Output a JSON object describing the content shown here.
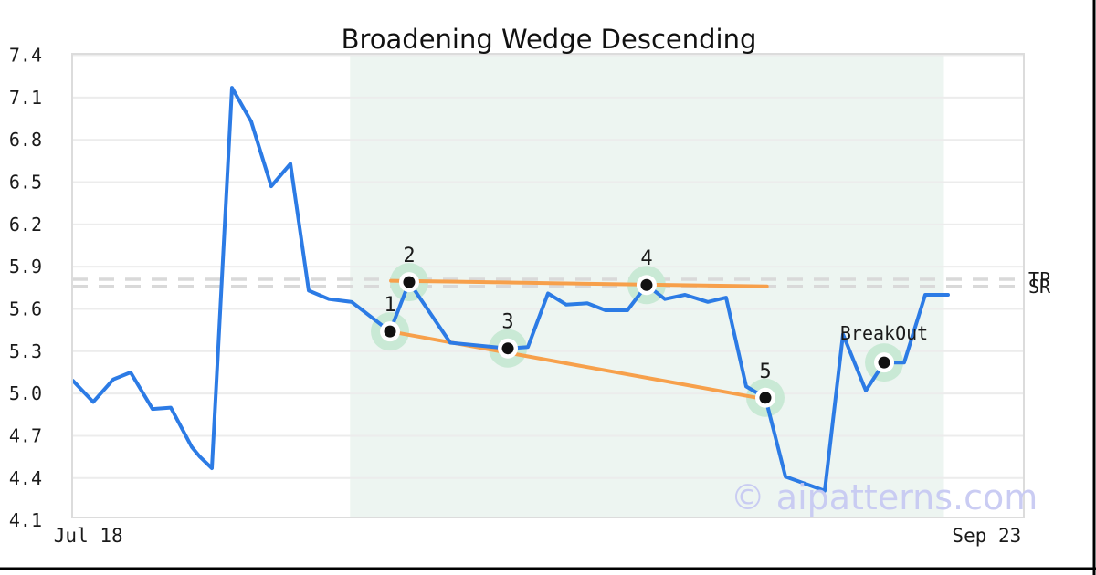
{
  "watermark": "© aipatterns.com",
  "colors": {
    "price_line": "#2c7be5",
    "trendline": "#f7a04b",
    "marker_halo": "#c9e9d5",
    "marker_ring": "#ffffff",
    "marker_dot": "#111111",
    "pattern_region": "#edf5f1",
    "gridline": "#ececec",
    "plot_border": "#dcdcdc",
    "dashed_level": "#d9d9d9",
    "watermark_color": "#c8caf3",
    "label_color": "#1a1a1a",
    "frame_border": "#000000"
  },
  "chart_data": {
    "type": "line",
    "title": "Broadening Wedge Descending",
    "grid": true,
    "legend_position": "none",
    "axis": {
      "y_min": 4.12,
      "y_max": 7.41
    },
    "y_ticks": [
      7.4,
      7.1,
      6.8,
      6.5,
      6.2,
      5.9,
      5.6,
      5.3,
      5.0,
      4.7,
      4.4,
      4.1
    ],
    "x_ticks": [
      {
        "label": "Jul 18",
        "x_pct": 1.7
      },
      {
        "label": "Sep 23",
        "x_pct": 96.1
      }
    ],
    "series": [
      {
        "name": "price",
        "x_pct": [
          0.1,
          2.21,
          4.32,
          6.14,
          8.45,
          10.36,
          12.57,
          13.44,
          14.68,
          16.79,
          18.81,
          20.92,
          22.94,
          24.86,
          26.97,
          29.37,
          33.4,
          35.41,
          39.73,
          45.78,
          47.89,
          50.0,
          51.92,
          54.13,
          56.05,
          58.35,
          60.36,
          62.28,
          64.4,
          66.79,
          68.71,
          70.83,
          72.84,
          74.95,
          76.2,
          79.08,
          81.0,
          83.4,
          85.32,
          87.43,
          89.64,
          92.03
        ],
        "values": [
          5.09,
          4.94,
          5.1,
          5.15,
          4.89,
          4.9,
          4.62,
          4.55,
          4.47,
          7.17,
          6.93,
          6.47,
          6.63,
          5.73,
          5.67,
          5.65,
          5.44,
          5.79,
          5.36,
          5.32,
          5.33,
          5.71,
          5.63,
          5.64,
          5.59,
          5.59,
          5.77,
          5.67,
          5.7,
          5.65,
          5.68,
          5.05,
          4.97,
          4.41,
          4.38,
          4.31,
          5.42,
          5.02,
          5.22,
          5.22,
          5.7,
          5.7
        ]
      }
    ],
    "pattern_region": {
      "start_x_pct": 29.2,
      "end_x_pct": 91.6
    },
    "pattern_points": [
      {
        "label": "1",
        "x_pct": 33.4,
        "value": 5.44
      },
      {
        "label": "2",
        "x_pct": 35.41,
        "value": 5.79
      },
      {
        "label": "3",
        "x_pct": 45.78,
        "value": 5.32
      },
      {
        "label": "4",
        "x_pct": 60.36,
        "value": 5.77
      },
      {
        "label": "5",
        "x_pct": 72.84,
        "value": 4.97
      },
      {
        "label": "BreakOut",
        "x_pct": 85.32,
        "value": 5.22
      }
    ],
    "trendlines": [
      {
        "name": "upper",
        "x1_pct": 33.5,
        "v1": 5.8,
        "x2_pct": 73.0,
        "v2": 5.76
      },
      {
        "name": "lower",
        "x1_pct": 33.4,
        "v1": 5.44,
        "x2_pct": 72.8,
        "v2": 4.96
      }
    ],
    "levels": [
      {
        "label": "TP",
        "value": 5.81
      },
      {
        "label": "SR",
        "value": 5.76
      }
    ]
  }
}
